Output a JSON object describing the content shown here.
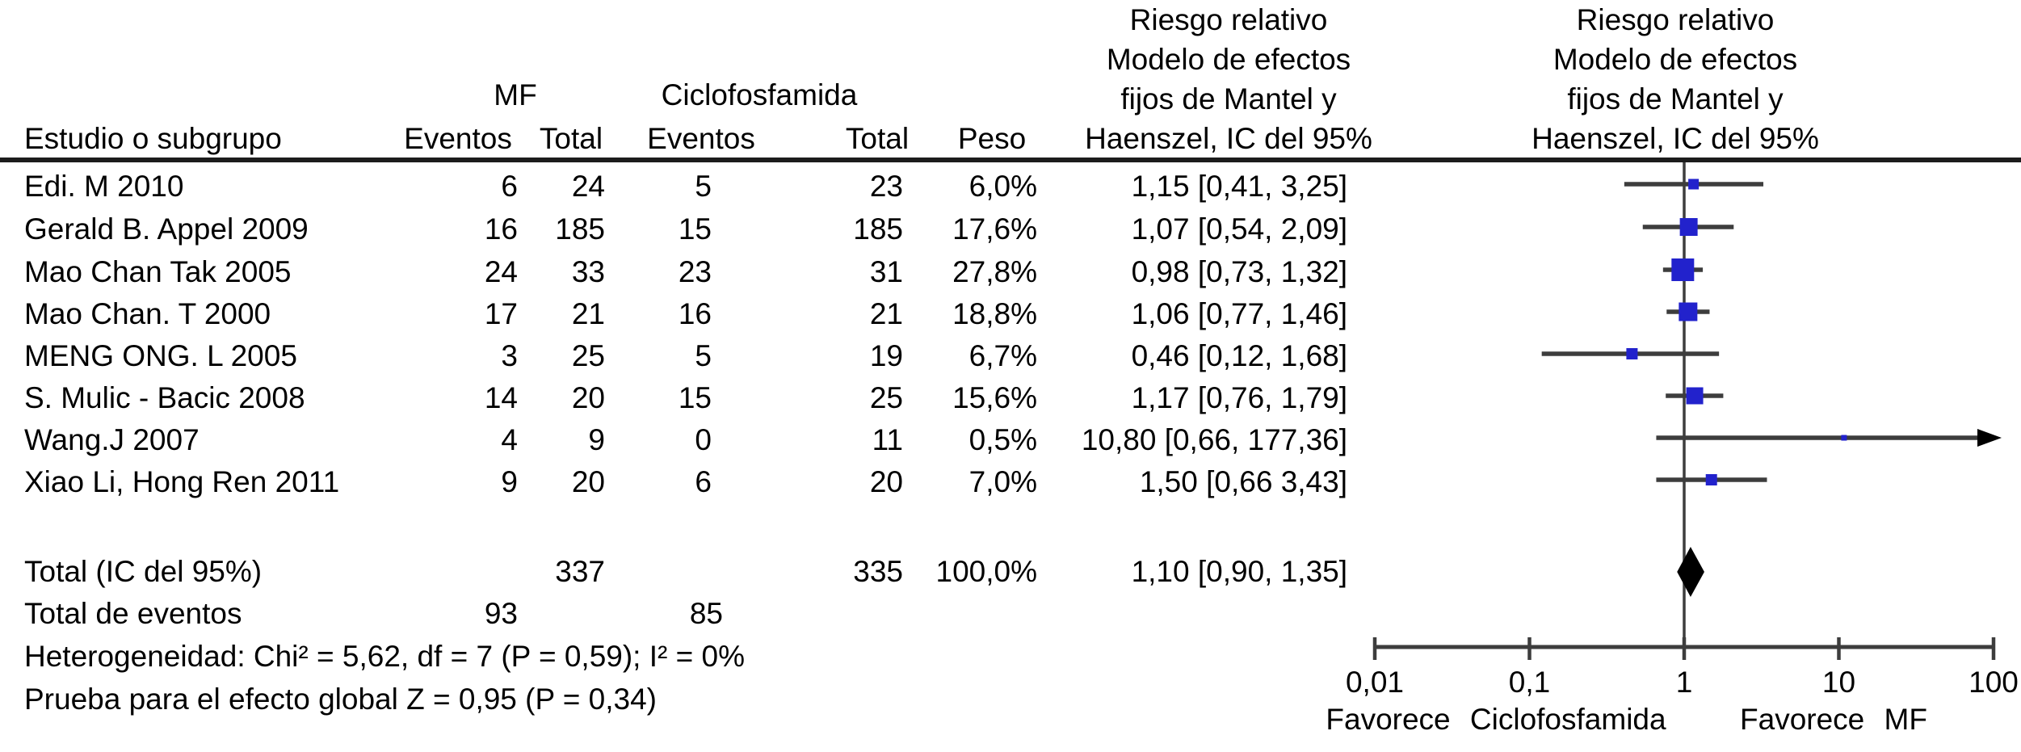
{
  "table": {
    "study_header": "Estudio o subgrupo",
    "mf_group_header": "MF",
    "cyc_group_header": "Ciclofosfamida",
    "mf_events_header": "Eventos",
    "mf_total_header": "Total",
    "cyc_events_header": "Eventos",
    "cyc_total_header": "Total",
    "weight_header": "Peso",
    "rr_text_header_lines": [
      "Riesgo relativo",
      "Modelo de efectos",
      "fijos de Mantel y",
      "Haenszel, IC del 95%"
    ],
    "rr_plot_header_lines": [
      "Riesgo relativo",
      "Modelo de efectos",
      "fijos de Mantel y",
      "Haenszel, IC del 95%"
    ],
    "rows": [
      {
        "study": "Edi. M 2010",
        "mf_events": "6",
        "mf_total": "24",
        "cyc_events": "5",
        "cyc_total": "23",
        "weight": "6,0%",
        "rr_ci": "1,15 [0,41, 3,25]"
      },
      {
        "study": "Gerald B. Appel 2009",
        "mf_events": "16",
        "mf_total": "185",
        "cyc_events": "15",
        "cyc_total": "185",
        "weight": "17,6%",
        "rr_ci": "1,07 [0,54, 2,09]"
      },
      {
        "study": "Mao Chan Tak 2005",
        "mf_events": "24",
        "mf_total": "33",
        "cyc_events": "23",
        "cyc_total": "31",
        "weight": "27,8%",
        "rr_ci": "0,98 [0,73, 1,32]"
      },
      {
        "study": "Mao Chan. T 2000",
        "mf_events": "17",
        "mf_total": "21",
        "cyc_events": "16",
        "cyc_total": "21",
        "weight": "18,8%",
        "rr_ci": "1,06 [0,77, 1,46]"
      },
      {
        "study": "MENG ONG. L 2005",
        "mf_events": "3",
        "mf_total": "25",
        "cyc_events": "5",
        "cyc_total": "19",
        "weight": "6,7%",
        "rr_ci": "0,46 [0,12, 1,68]"
      },
      {
        "study": "S. Mulic - Bacic 2008",
        "mf_events": "14",
        "mf_total": "20",
        "cyc_events": "15",
        "cyc_total": "25",
        "weight": "15,6%",
        "rr_ci": "1,17 [0,76, 1,79]"
      },
      {
        "study": "Wang.J 2007",
        "mf_events": "4",
        "mf_total": "9",
        "cyc_events": "0",
        "cyc_total": "11",
        "weight": "0,5%",
        "rr_ci": "10,80 [0,66, 177,36]"
      },
      {
        "study": "Xiao Li, Hong Ren 2011",
        "mf_events": "9",
        "mf_total": "20",
        "cyc_events": "6",
        "cyc_total": "20",
        "weight": "7,0%",
        "rr_ci": "1,50 [0,66 3,43]"
      }
    ],
    "total_row": {
      "label": "Total (IC del 95%)",
      "mf_total": "337",
      "cyc_total": "335",
      "weight": "100,0%",
      "rr_ci": "1,10 [0,90, 1,35]"
    },
    "events_row": {
      "label": "Total de eventos",
      "mf_events": "93",
      "cyc_events": "85"
    },
    "heterogeneity": "Heterogeneidad: Chi² = 5,62, df = 7 (P = 0,59); I² = 0%",
    "overall_test": "Prueba para el efecto global Z = 0,95 (P = 0,34)"
  },
  "chart_data": {
    "type": "forest",
    "x_scale": "log10",
    "xlim": [
      0.01,
      100
    ],
    "null_line": 1,
    "x_ticks": {
      "values": [
        0.01,
        0.1,
        1,
        10,
        100
      ],
      "labels": [
        "0,01",
        "0,1",
        "1",
        "10",
        "100"
      ]
    },
    "direction_labels": {
      "left": "Favorece Ciclofosfamida",
      "right": "Favorece MF"
    },
    "studies": [
      {
        "name": "Edi. M 2010",
        "rr": 1.15,
        "ci_low": 0.41,
        "ci_high": 3.25,
        "weight_pct": 6.0
      },
      {
        "name": "Gerald B. Appel 2009",
        "rr": 1.07,
        "ci_low": 0.54,
        "ci_high": 2.09,
        "weight_pct": 17.6
      },
      {
        "name": "Mao Chan Tak 2005",
        "rr": 0.98,
        "ci_low": 0.73,
        "ci_high": 1.32,
        "weight_pct": 27.8
      },
      {
        "name": "Mao Chan. T 2000",
        "rr": 1.06,
        "ci_low": 0.77,
        "ci_high": 1.46,
        "weight_pct": 18.8
      },
      {
        "name": "MENG ONG. L 2005",
        "rr": 0.46,
        "ci_low": 0.12,
        "ci_high": 1.68,
        "weight_pct": 6.7
      },
      {
        "name": "S. Mulic - Bacic 2008",
        "rr": 1.17,
        "ci_low": 0.76,
        "ci_high": 1.79,
        "weight_pct": 15.6
      },
      {
        "name": "Wang.J 2007",
        "rr": 10.8,
        "ci_low": 0.66,
        "ci_high": 177.36,
        "weight_pct": 0.5,
        "arrow_right": true
      },
      {
        "name": "Xiao Li, Hong Ren 2011",
        "rr": 1.5,
        "ci_low": 0.66,
        "ci_high": 3.43,
        "weight_pct": 7.0
      }
    ],
    "total": {
      "rr": 1.1,
      "ci_low": 0.9,
      "ci_high": 1.35
    },
    "colors": {
      "marker": "#2222cc",
      "line": "#3d3d3d",
      "diamond": "#000000",
      "text": "#000000"
    }
  }
}
